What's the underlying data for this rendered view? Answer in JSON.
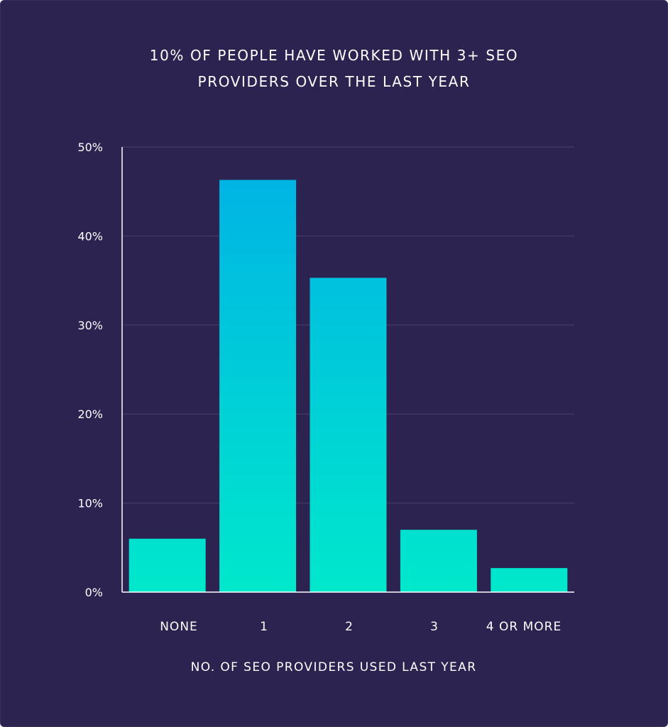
{
  "title": {
    "line1": "10% OF PEOPLE HAVE WORKED WITH 3+ SEO",
    "line2": "PROVIDERS OVER THE LAST YEAR"
  },
  "colors": {
    "background": "#2d2350",
    "bar_top": "#00b0e6",
    "bar_bottom": "#00e8cc",
    "gridline": "#4a4170",
    "axis": "#ffffff",
    "text": "#ffffff"
  },
  "chart_data": {
    "type": "bar",
    "categories": [
      "NONE",
      "1",
      "2",
      "3",
      "4 OR MORE"
    ],
    "values": [
      6,
      46.3,
      35.3,
      7,
      2.7
    ],
    "unit": "%",
    "title": "10% OF PEOPLE HAVE WORKED WITH 3+ SEO PROVIDERS OVER THE LAST YEAR",
    "xlabel": "NO. OF SEO PROVIDERS USED LAST YEAR",
    "ylabel": "",
    "ylim": [
      0,
      50
    ],
    "yticks": [
      0,
      10,
      20,
      30,
      40,
      50
    ],
    "ytick_labels": [
      "0%",
      "10%",
      "20%",
      "30%",
      "40%",
      "50%"
    ],
    "grid": true,
    "legend": "none"
  }
}
